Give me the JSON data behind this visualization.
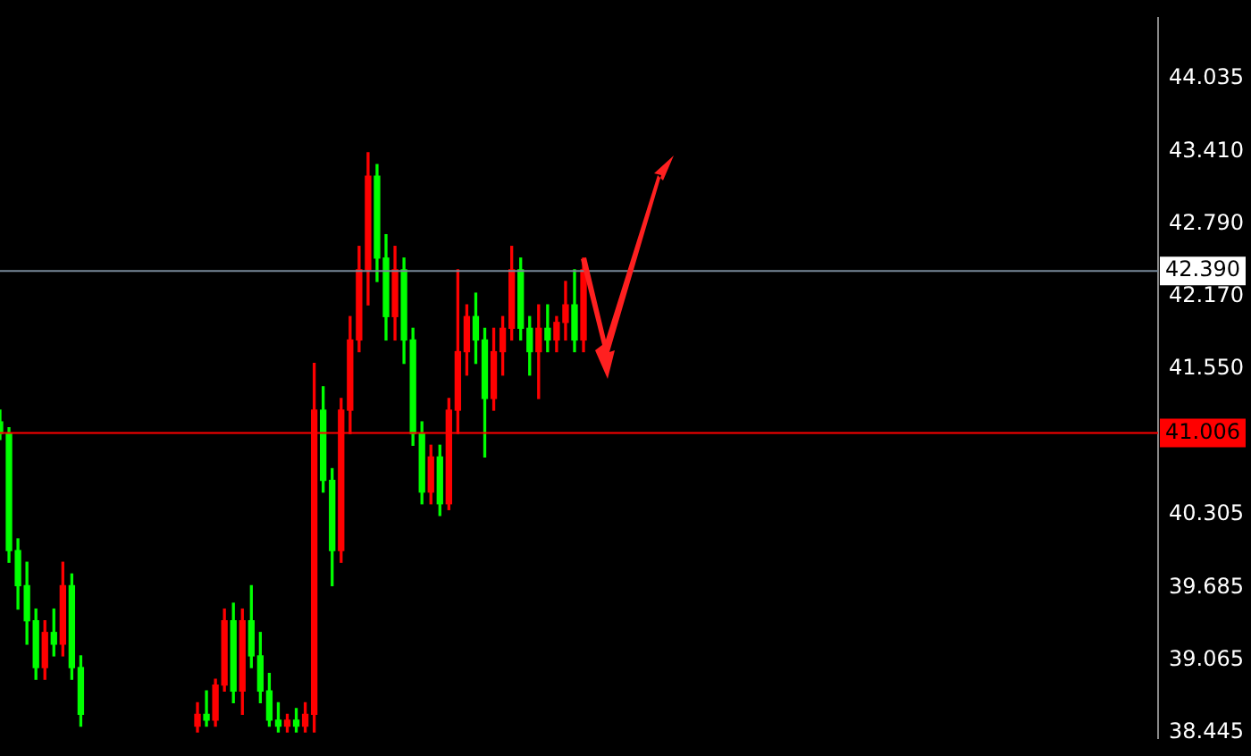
{
  "chart_data": {
    "type": "candlestick",
    "categories": [
      null,
      null,
      null,
      null,
      null,
      null,
      null,
      null,
      null,
      null,
      null,
      null,
      null,
      null,
      null,
      null,
      null,
      null,
      null,
      null,
      null,
      null,
      null,
      null,
      null,
      null,
      null,
      null,
      null,
      null,
      null,
      null,
      null,
      null,
      null,
      null,
      null,
      null,
      null,
      null,
      null,
      null,
      null,
      null,
      null,
      null,
      null,
      null,
      null,
      null,
      null,
      null,
      null,
      null,
      null,
      null,
      null,
      null,
      null,
      null,
      null,
      null,
      null,
      null,
      null,
      null,
      null,
      null,
      null,
      null,
      null,
      null,
      null,
      null,
      null,
      null,
      null,
      null,
      null,
      null,
      null,
      null,
      null,
      null,
      null,
      null,
      null,
      null,
      null,
      null,
      null,
      null,
      null,
      null,
      null,
      null,
      null,
      null,
      null,
      null,
      null,
      null,
      null,
      null,
      null,
      null,
      null,
      null,
      null,
      null,
      null,
      null,
      null,
      null,
      null,
      null,
      null,
      null,
      null,
      null,
      null,
      null,
      null,
      null,
      null,
      null,
      null,
      null,
      null,
      null
    ],
    "ohlc": [
      [
        41.1,
        41.2,
        40.95,
        41.0
      ],
      [
        41.0,
        41.05,
        39.9,
        40.0
      ],
      [
        40.0,
        40.1,
        39.5,
        39.7
      ],
      [
        39.7,
        39.9,
        39.2,
        39.4
      ],
      [
        39.4,
        39.5,
        38.9,
        39.0
      ],
      [
        39.0,
        39.4,
        38.9,
        39.3
      ],
      [
        39.3,
        39.5,
        39.1,
        39.2
      ],
      [
        39.2,
        39.9,
        39.1,
        39.7
      ],
      [
        39.7,
        39.8,
        38.9,
        39.0
      ],
      [
        39.0,
        39.1,
        38.5,
        38.6
      ],
      null,
      null,
      null,
      null,
      null,
      null,
      null,
      null,
      null,
      null,
      null,
      null,
      [
        38.5,
        38.7,
        38.45,
        38.6
      ],
      [
        38.6,
        38.8,
        38.5,
        38.55
      ],
      [
        38.55,
        38.9,
        38.5,
        38.85
      ],
      [
        38.85,
        39.5,
        38.8,
        39.4
      ],
      [
        39.4,
        39.55,
        38.7,
        38.8
      ],
      [
        38.8,
        39.5,
        38.6,
        39.4
      ],
      [
        39.4,
        39.7,
        39.0,
        39.1
      ],
      [
        39.1,
        39.3,
        38.7,
        38.8
      ],
      [
        38.8,
        38.95,
        38.5,
        38.55
      ],
      [
        38.55,
        38.7,
        38.45,
        38.5
      ],
      [
        38.5,
        38.6,
        38.45,
        38.55
      ],
      [
        38.55,
        38.65,
        38.45,
        38.5
      ],
      [
        38.5,
        38.7,
        38.45,
        38.6
      ],
      [
        38.6,
        41.6,
        38.45,
        41.2
      ],
      [
        41.2,
        41.4,
        40.5,
        40.6
      ],
      [
        40.6,
        40.7,
        39.7,
        40.0
      ],
      [
        40.0,
        41.3,
        39.9,
        41.2
      ],
      [
        41.2,
        42.0,
        41.0,
        41.8
      ],
      [
        41.8,
        42.6,
        41.7,
        42.4
      ],
      [
        42.4,
        43.4,
        42.1,
        43.2
      ],
      [
        43.2,
        43.3,
        42.3,
        42.5
      ],
      [
        42.5,
        42.7,
        41.8,
        42.0
      ],
      [
        42.0,
        42.6,
        41.8,
        42.4
      ],
      [
        42.4,
        42.5,
        41.6,
        41.8
      ],
      [
        41.8,
        41.9,
        40.9,
        41.0
      ],
      [
        41.0,
        41.1,
        40.4,
        40.5
      ],
      [
        40.5,
        40.9,
        40.4,
        40.8
      ],
      [
        40.8,
        40.9,
        40.3,
        40.4
      ],
      [
        40.4,
        41.3,
        40.35,
        41.2
      ],
      [
        41.2,
        42.4,
        41.0,
        41.7
      ],
      [
        41.7,
        42.1,
        41.5,
        42.0
      ],
      [
        42.0,
        42.2,
        41.6,
        41.8
      ],
      [
        41.8,
        41.9,
        40.8,
        41.3
      ],
      [
        41.3,
        41.9,
        41.2,
        41.7
      ],
      [
        41.7,
        42.0,
        41.5,
        41.9
      ],
      [
        41.9,
        42.6,
        41.8,
        42.4
      ],
      [
        42.4,
        42.5,
        41.8,
        41.9
      ],
      [
        41.9,
        42.0,
        41.5,
        41.7
      ],
      [
        41.7,
        42.1,
        41.3,
        41.9
      ],
      [
        41.9,
        42.1,
        41.7,
        41.8
      ],
      [
        41.8,
        42.0,
        41.7,
        41.95
      ],
      [
        41.95,
        42.3,
        41.8,
        42.1
      ],
      [
        42.1,
        42.4,
        41.7,
        41.8
      ],
      [
        41.8,
        42.5,
        41.7,
        42.4
      ],
      null,
      null,
      null,
      null,
      null,
      null,
      null,
      null,
      null,
      null,
      null,
      null,
      null,
      null,
      null,
      null,
      null,
      null,
      null,
      null,
      null,
      null,
      null,
      null,
      null,
      null,
      null,
      null,
      null,
      null,
      null,
      null,
      null,
      null,
      null,
      null,
      null,
      null,
      null,
      null,
      null,
      null,
      null,
      null,
      null,
      null,
      null,
      null,
      null,
      null,
      null,
      null,
      null,
      null,
      null,
      null,
      null,
      null,
      null,
      null,
      null,
      null,
      null,
      null
    ],
    "ylim": [
      38.4,
      44.55
    ],
    "yticks": [
      44.035,
      {
        "value": 43.41,
        "label": "43.410"
      },
      {
        "value": 42.79,
        "label": "42.790"
      },
      {
        "value": 42.17,
        "label": "42.170"
      },
      {
        "value": 41.55,
        "label": "41.550"
      },
      40.305,
      39.685,
      39.065,
      38.445
    ],
    "ref_lines": [
      {
        "axis": "y",
        "value": 42.39,
        "label": "42.390",
        "color": "#778899"
      },
      {
        "axis": "y",
        "value": 41.006,
        "label": "41.006",
        "color": "#ff0000"
      }
    ],
    "tick_labels": "y",
    "grid": false,
    "legend": false
  }
}
